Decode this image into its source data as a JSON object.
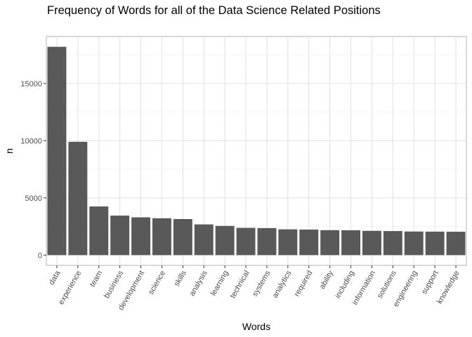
{
  "chart_data": {
    "type": "bar",
    "title": "Frequency of Words for all of the Data Science Related Positions",
    "xlabel": "Words",
    "ylabel": "n",
    "categories": [
      "data",
      "experience",
      "team",
      "business",
      "development",
      "science",
      "skills",
      "analysis",
      "learning",
      "technical",
      "systems",
      "analytics",
      "required",
      "ability",
      "including",
      "information",
      "solutions",
      "engineering",
      "support",
      "knowledge"
    ],
    "values": [
      18200,
      9900,
      4250,
      3450,
      3300,
      3220,
      3150,
      2680,
      2550,
      2380,
      2360,
      2250,
      2230,
      2180,
      2170,
      2120,
      2100,
      2060,
      2050,
      2040
    ],
    "y_ticks": [
      0,
      5000,
      10000,
      15000
    ],
    "ylim": [
      -900,
      19100
    ],
    "bar_color": "#595959",
    "grid": true
  }
}
